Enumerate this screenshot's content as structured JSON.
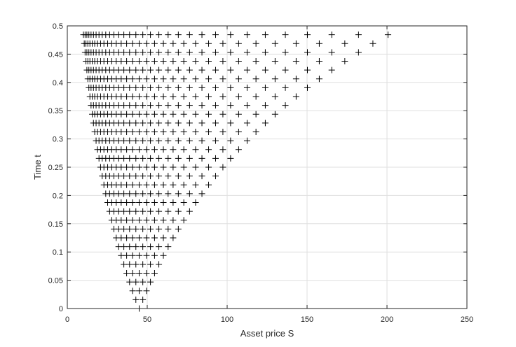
{
  "chart_data": {
    "type": "scatter",
    "title": "",
    "xlabel": "Asset price S",
    "ylabel": "Time t",
    "xlim": [
      0,
      250
    ],
    "ylim": [
      0,
      0.5
    ],
    "xticks": [
      "0",
      "50",
      "100",
      "150",
      "200",
      "250"
    ],
    "yticks": [
      "0",
      "0.05",
      "0.1",
      "0.15",
      "0.2",
      "0.25",
      "0.3",
      "0.35",
      "0.4",
      "0.45",
      "0.5"
    ],
    "xtick_values": [
      0,
      50,
      100,
      150,
      200,
      250
    ],
    "ytick_values": [
      0,
      0.05,
      0.1,
      0.15,
      0.2,
      0.25,
      0.3,
      0.35,
      0.4,
      0.45,
      0.5
    ],
    "grid": true,
    "marker": "+",
    "marker_color": "#000000",
    "lattice": {
      "S0": 45,
      "u": 1.0494,
      "dt": 0.015625,
      "steps": 31
    }
  }
}
